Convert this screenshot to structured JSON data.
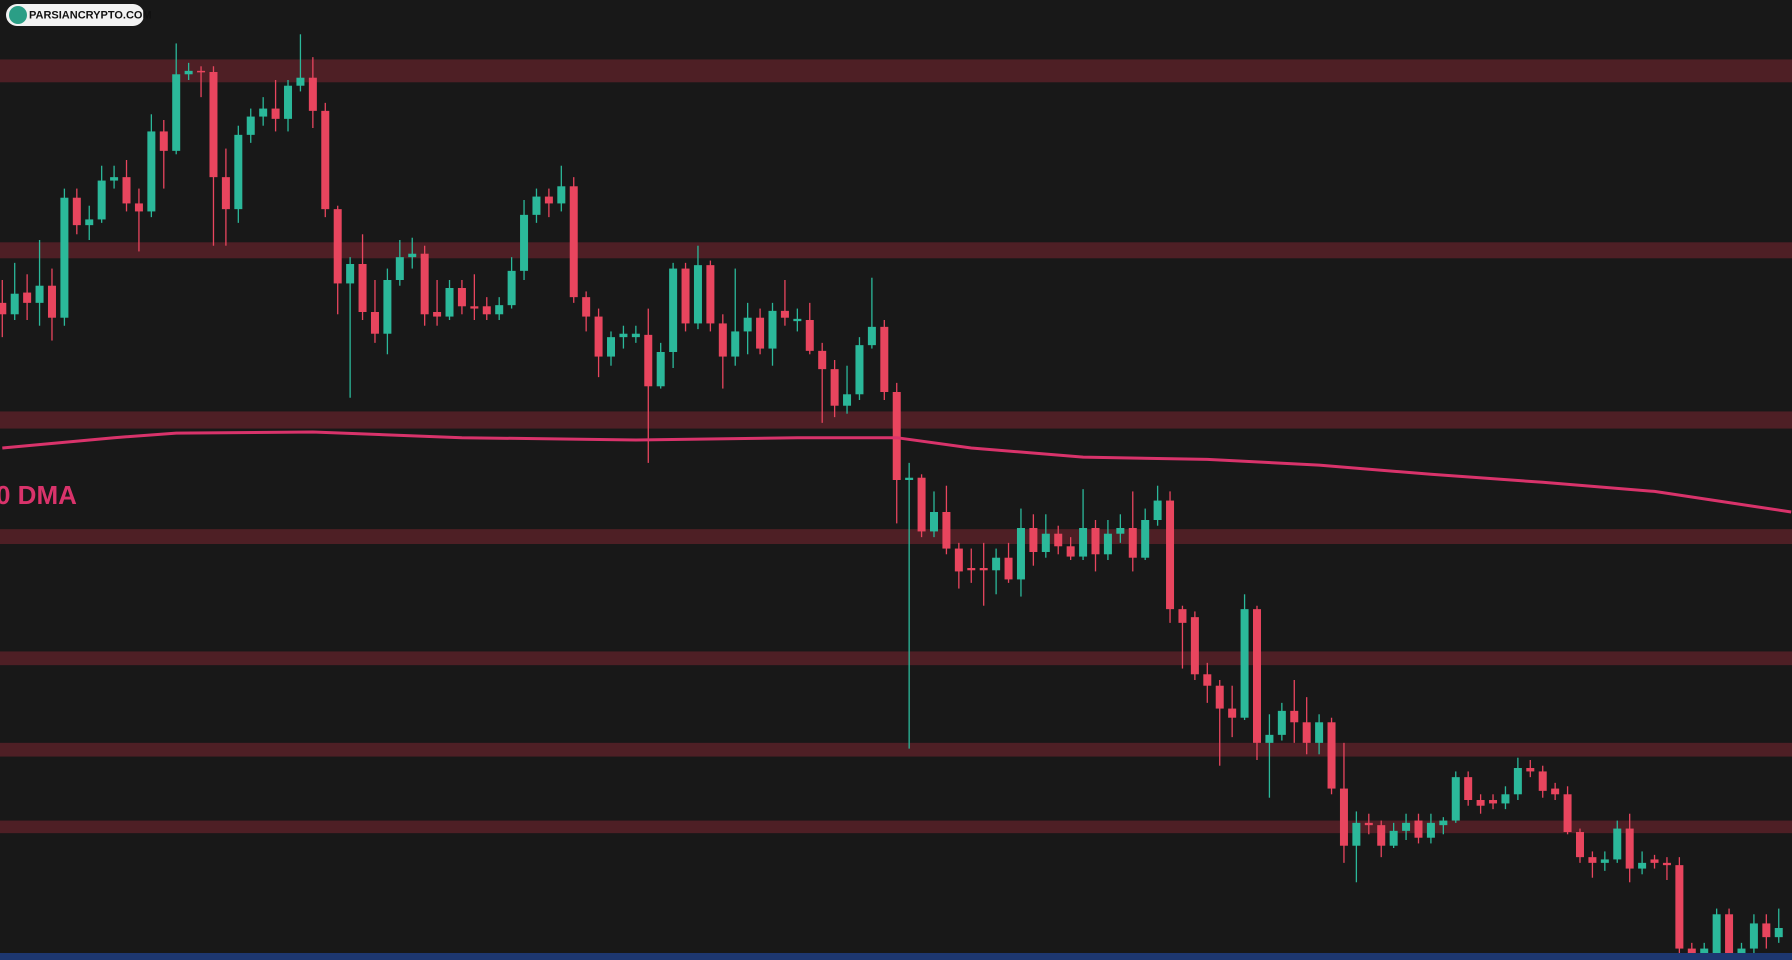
{
  "watermark": "PARSIANCRYPTO.COM",
  "chart_data": {
    "type": "candlestick",
    "ylim": [
      0,
      840
    ],
    "up_color": "#2bb89a",
    "down_color": "#e8455e",
    "zone_color": "#4e1f25",
    "zones": [
      [
        768,
        788
      ],
      [
        614,
        628
      ],
      [
        465,
        480
      ],
      [
        364,
        377
      ],
      [
        258,
        270
      ],
      [
        178,
        190
      ],
      [
        111,
        122
      ]
    ],
    "open": [
      575,
      565,
      584,
      575,
      590,
      562,
      667,
      643,
      648,
      682,
      685,
      662,
      655,
      725,
      708,
      775,
      778,
      777,
      685,
      657,
      722,
      738,
      745,
      736,
      765,
      772,
      743,
      657,
      592,
      609,
      567,
      548,
      595,
      615,
      618,
      567,
      563,
      588,
      572,
      572,
      565,
      573,
      603,
      652,
      668,
      662,
      677,
      580,
      563,
      528,
      545,
      545,
      547,
      502,
      532,
      605,
      557,
      608,
      557,
      528,
      550,
      562,
      535,
      568,
      559,
      560,
      533,
      517,
      485,
      495,
      538,
      554,
      497,
      420,
      422,
      375,
      392,
      360,
      343,
      343,
      341,
      352,
      333,
      378,
      357,
      373,
      362,
      353,
      378,
      355,
      373,
      378,
      352,
      385,
      402,
      307,
      300,
      250,
      240,
      220,
      212,
      307,
      190,
      197,
      218,
      208,
      190,
      208,
      150,
      100,
      120,
      118,
      100,
      113,
      122,
      107,
      118,
      122,
      160,
      140,
      140,
      137,
      145,
      168,
      165,
      150,
      145,
      112,
      90,
      85,
      88,
      115,
      80,
      88,
      85,
      83,
      10,
      5,
      5,
      40,
      5,
      10,
      32,
      20
    ],
    "high": [
      595,
      610,
      600,
      630,
      605,
      675,
      675,
      660,
      695,
      695,
      700,
      675,
      740,
      735,
      802,
      785,
      782,
      782,
      710,
      730,
      745,
      755,
      770,
      770,
      810,
      790,
      750,
      660,
      615,
      635,
      595,
      605,
      630,
      632,
      625,
      595,
      595,
      595,
      600,
      580,
      580,
      615,
      665,
      675,
      675,
      695,
      685,
      585,
      570,
      550,
      555,
      555,
      570,
      540,
      610,
      610,
      625,
      612,
      565,
      605,
      575,
      570,
      575,
      595,
      570,
      575,
      540,
      525,
      520,
      545,
      597,
      560,
      505,
      435,
      425,
      410,
      415,
      365,
      360,
      365,
      360,
      365,
      395,
      390,
      390,
      380,
      370,
      412,
      385,
      385,
      390,
      410,
      395,
      415,
      410,
      310,
      305,
      260,
      245,
      240,
      320,
      310,
      215,
      225,
      245,
      230,
      215,
      212,
      190,
      130,
      128,
      122,
      120,
      128,
      128,
      128,
      125,
      165,
      165,
      145,
      145,
      152,
      177,
      175,
      170,
      155,
      152,
      115,
      95,
      95,
      122,
      128,
      95,
      92,
      90,
      90,
      15,
      15,
      45,
      45,
      15,
      40,
      40,
      45
    ],
    "low": [
      545,
      560,
      560,
      555,
      542,
      555,
      635,
      630,
      645,
      675,
      655,
      620,
      650,
      675,
      705,
      770,
      755,
      625,
      625,
      645,
      715,
      730,
      725,
      725,
      760,
      728,
      650,
      565,
      492,
      560,
      540,
      530,
      590,
      605,
      555,
      555,
      560,
      565,
      560,
      560,
      560,
      570,
      595,
      645,
      650,
      655,
      575,
      550,
      510,
      520,
      535,
      540,
      435,
      500,
      518,
      550,
      552,
      550,
      500,
      520,
      530,
      530,
      520,
      555,
      550,
      530,
      470,
      475,
      478,
      490,
      535,
      490,
      382,
      185,
      370,
      370,
      355,
      325,
      330,
      310,
      320,
      330,
      318,
      345,
      352,
      355,
      350,
      350,
      340,
      350,
      365,
      340,
      350,
      380,
      295,
      255,
      245,
      225,
      170,
      195,
      210,
      175,
      142,
      192,
      190,
      180,
      180,
      145,
      85,
      68,
      110,
      90,
      98,
      105,
      102,
      102,
      110,
      120,
      135,
      128,
      132,
      132,
      140,
      160,
      142,
      140,
      110,
      85,
      72,
      78,
      85,
      68,
      75,
      80,
      70,
      0,
      0,
      0,
      0,
      0,
      0,
      5,
      10,
      15
    ],
    "close": [
      565,
      583,
      575,
      590,
      562,
      667,
      643,
      648,
      682,
      685,
      662,
      655,
      725,
      708,
      775,
      778,
      777,
      685,
      657,
      722,
      738,
      745,
      736,
      765,
      772,
      743,
      657,
      592,
      609,
      567,
      548,
      595,
      615,
      618,
      565,
      563,
      588,
      572,
      570,
      565,
      573,
      603,
      652,
      668,
      662,
      677,
      580,
      563,
      528,
      545,
      548,
      548,
      502,
      532,
      605,
      557,
      608,
      557,
      528,
      550,
      562,
      535,
      568,
      562,
      561,
      533,
      517,
      485,
      495,
      538,
      554,
      497,
      420,
      422,
      375,
      392,
      360,
      340,
      341,
      341,
      352,
      333,
      378,
      357,
      373,
      362,
      353,
      378,
      355,
      373,
      378,
      352,
      385,
      402,
      307,
      295,
      250,
      240,
      220,
      212,
      307,
      190,
      197,
      218,
      208,
      190,
      208,
      150,
      100,
      120,
      118,
      100,
      113,
      120,
      107,
      120,
      122,
      160,
      140,
      135,
      137,
      145,
      168,
      165,
      148,
      145,
      112,
      90,
      85,
      88,
      115,
      80,
      85,
      85,
      83,
      10,
      5,
      10,
      40,
      5,
      10,
      32,
      20,
      28
    ],
    "dma": {
      "name": "0 DMA",
      "color": "#d9336b",
      "x": [
        0,
        9,
        14,
        25,
        37,
        51,
        64,
        72,
        78,
        87,
        97,
        106,
        115,
        124,
        133,
        144
      ],
      "values": [
        448,
        457,
        461,
        462,
        457,
        455,
        457,
        457,
        448,
        440,
        438,
        433,
        425,
        418,
        410,
        392
      ]
    }
  }
}
